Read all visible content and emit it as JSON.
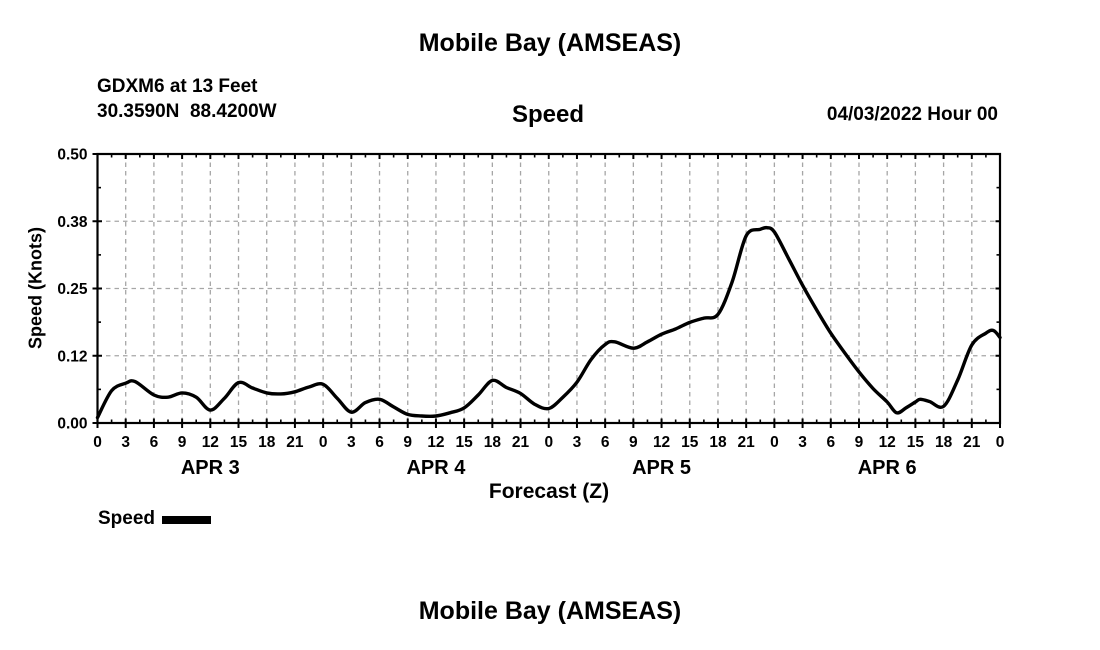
{
  "header": {
    "title": "Mobile Bay (AMSEAS)",
    "station": "GDXM6 at 13 Feet",
    "coordinates": "30.3590N  88.4200W",
    "variable": "Speed",
    "run_time": "04/03/2022 Hour 00"
  },
  "axes": {
    "ylabel": "Speed (Knots)",
    "xlabel": "Forecast (Z)"
  },
  "legend": {
    "label": "Speed"
  },
  "footer": {
    "next_chart_title": "Mobile Bay (AMSEAS)"
  },
  "colors": {
    "background": "#ffffff",
    "text": "#000000",
    "line": "#000000",
    "grid": "#a6a6a6"
  },
  "chart_data": {
    "type": "line",
    "title": "Mobile Bay (AMSEAS)",
    "subtitle": "Speed",
    "station": "GDXM6 at 13 Feet",
    "coordinates": "30.3590N  88.4200W",
    "run_time": "04/03/2022 Hour 00",
    "xlabel": "Forecast (Z)",
    "ylabel": "Speed (Knots)",
    "xlim_hours": [
      0,
      96
    ],
    "ylim": [
      0,
      0.5
    ],
    "grid": true,
    "y_tick_values": [
      0,
      0.125,
      0.25,
      0.375,
      0.5
    ],
    "y_tick_labels": [
      "0.00",
      "0.12",
      "0.25",
      "0.38",
      "0.50"
    ],
    "x_major_tick_step_hours": 3,
    "x_minor_tick_step_hours": 1.5,
    "x_tick_labels": [
      "0",
      "3",
      "6",
      "9",
      "12",
      "15",
      "18",
      "21",
      "0",
      "3",
      "6",
      "9",
      "12",
      "15",
      "18",
      "21",
      "0",
      "3",
      "6",
      "9",
      "12",
      "15",
      "18",
      "21",
      "0",
      "3",
      "6",
      "9",
      "12",
      "15",
      "18",
      "21",
      "0"
    ],
    "day_labels": [
      {
        "label": "APR 3",
        "hour": 12
      },
      {
        "label": "APR 4",
        "hour": 36
      },
      {
        "label": "APR 5",
        "hour": 60
      },
      {
        "label": "APR 6",
        "hour": 84
      }
    ],
    "legend": {
      "position": "bottom-left",
      "entries": [
        {
          "label": "Speed",
          "color": "#000000"
        }
      ]
    },
    "series": [
      {
        "name": "Speed",
        "units": "knots",
        "points": [
          [
            0,
            0.01
          ],
          [
            1.5,
            0.06
          ],
          [
            3,
            0.074
          ],
          [
            4,
            0.077
          ],
          [
            6,
            0.052
          ],
          [
            7.5,
            0.048
          ],
          [
            9,
            0.056
          ],
          [
            10.5,
            0.048
          ],
          [
            12,
            0.024
          ],
          [
            13.5,
            0.046
          ],
          [
            15,
            0.075
          ],
          [
            16.5,
            0.065
          ],
          [
            18,
            0.056
          ],
          [
            19.5,
            0.054
          ],
          [
            21,
            0.058
          ],
          [
            22.5,
            0.067
          ],
          [
            24,
            0.072
          ],
          [
            25.5,
            0.046
          ],
          [
            27,
            0.02
          ],
          [
            28.5,
            0.038
          ],
          [
            30,
            0.044
          ],
          [
            31.5,
            0.03
          ],
          [
            33,
            0.016
          ],
          [
            34.5,
            0.013
          ],
          [
            36,
            0.013
          ],
          [
            37.5,
            0.019
          ],
          [
            39,
            0.028
          ],
          [
            40.5,
            0.052
          ],
          [
            42,
            0.079
          ],
          [
            43.5,
            0.066
          ],
          [
            45,
            0.055
          ],
          [
            46.5,
            0.035
          ],
          [
            48,
            0.027
          ],
          [
            49.5,
            0.048
          ],
          [
            51,
            0.076
          ],
          [
            52.5,
            0.118
          ],
          [
            54,
            0.146
          ],
          [
            55,
            0.151
          ],
          [
            57,
            0.139
          ],
          [
            58.5,
            0.151
          ],
          [
            60,
            0.165
          ],
          [
            61.5,
            0.175
          ],
          [
            63,
            0.187
          ],
          [
            64.5,
            0.195
          ],
          [
            66,
            0.202
          ],
          [
            67.5,
            0.262
          ],
          [
            69,
            0.348
          ],
          [
            70.5,
            0.36
          ],
          [
            71.2,
            0.363
          ],
          [
            72,
            0.355
          ],
          [
            73.5,
            0.306
          ],
          [
            75,
            0.256
          ],
          [
            76.5,
            0.21
          ],
          [
            78,
            0.167
          ],
          [
            79.5,
            0.13
          ],
          [
            81,
            0.095
          ],
          [
            82.5,
            0.064
          ],
          [
            84,
            0.039
          ],
          [
            85,
            0.019
          ],
          [
            86,
            0.028
          ],
          [
            87,
            0.039
          ],
          [
            87.5,
            0.044
          ],
          [
            88.5,
            0.04
          ],
          [
            90,
            0.031
          ],
          [
            91.5,
            0.08
          ],
          [
            93,
            0.145
          ],
          [
            94.5,
            0.167
          ],
          [
            95.3,
            0.172
          ],
          [
            96,
            0.159
          ]
        ]
      }
    ]
  }
}
